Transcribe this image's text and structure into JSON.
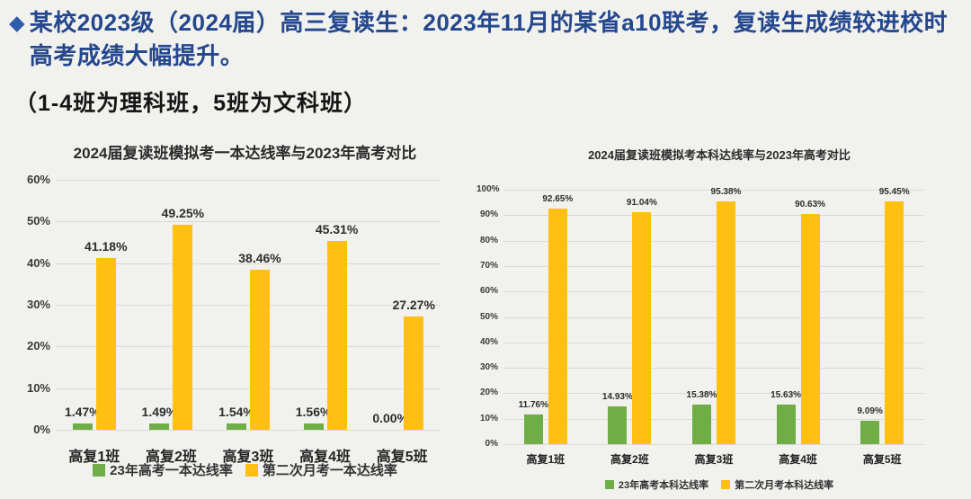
{
  "page": {
    "background": "#f1f1ee",
    "accent_blue": "#24478d",
    "green": "#6fad47",
    "orange": "#ffc013"
  },
  "header": {
    "bullet": "◆",
    "text": "某校2023级（2024届）高三复读生：2023年11月的某省a10联考，复读生成绩较进校时高考成绩大幅提升。"
  },
  "subtitle": "（1-4班为理科班，5班为文科班）",
  "chart_data": [
    {
      "type": "bar",
      "title": "2024届复读班模拟考一本达线率与2023年高考对比",
      "categories": [
        "高复1班",
        "高复2班",
        "高复3班",
        "高复4班",
        "高复5班"
      ],
      "series": [
        {
          "name": "23年高考一本达线率",
          "color": "#6fad47",
          "values": [
            1.47,
            1.49,
            1.54,
            1.56,
            0.0
          ],
          "labels": [
            "1.47%",
            "1.49%",
            "1.54%",
            "1.56%",
            "0.00%"
          ]
        },
        {
          "name": "第二次月考一本达线率",
          "color": "#ffc013",
          "values": [
            41.18,
            49.25,
            38.46,
            45.31,
            27.27
          ],
          "labels": [
            "41.18%",
            "49.25%",
            "38.46%",
            "45.31%",
            "27.27%"
          ]
        }
      ],
      "xlabel": "",
      "ylabel": "",
      "ylim": [
        0,
        60
      ],
      "ytick_step": 10,
      "yticks": [
        "0%",
        "10%",
        "20%",
        "30%",
        "40%",
        "50%",
        "60%"
      ],
      "grid": true,
      "legend_position": "bottom"
    },
    {
      "type": "bar",
      "title": "2024届复读班模拟考本科达线率与2023年高考对比",
      "categories": [
        "高复1班",
        "高复2班",
        "高复3班",
        "高复4班",
        "高复5班"
      ],
      "series": [
        {
          "name": "23年高考本科达线率",
          "color": "#6fad47",
          "values": [
            11.76,
            14.93,
            15.38,
            15.63,
            9.09
          ],
          "labels": [
            "11.76%",
            "14.93%",
            "15.38%",
            "15.63%",
            "9.09%"
          ]
        },
        {
          "name": "第二次月考本科达线率",
          "color": "#ffc013",
          "values": [
            92.65,
            91.04,
            95.38,
            90.63,
            95.45
          ],
          "labels": [
            "92.65%",
            "91.04%",
            "95.38%",
            "90.63%",
            "95.45%"
          ]
        }
      ],
      "xlabel": "",
      "ylabel": "",
      "ylim": [
        0,
        100
      ],
      "ytick_step": 10,
      "yticks": [
        "0%",
        "10%",
        "20%",
        "30%",
        "40%",
        "50%",
        "60%",
        "70%",
        "80%",
        "90%",
        "100%"
      ],
      "grid": true,
      "legend_position": "bottom"
    }
  ]
}
